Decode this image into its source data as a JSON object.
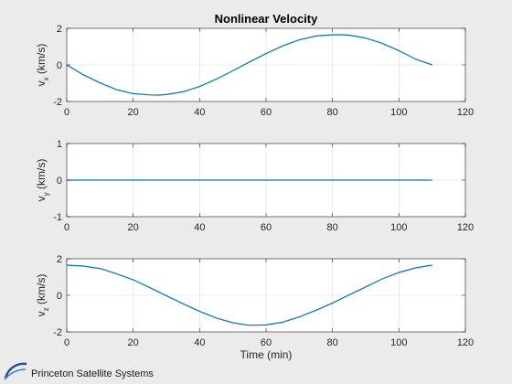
{
  "figure": {
    "background": "#ebebeb",
    "line_color": "#0072bd",
    "brand_text": "Princeton Satellite Systems",
    "brand_logo": "pss-swoosh-logo"
  },
  "chart_data": [
    {
      "type": "line",
      "title": "Nonlinear Velocity",
      "ylabel_main": "v",
      "ylabel_sub": "x",
      "ylabel_unit": " (km/s)",
      "xlabel": "",
      "xlim": [
        0,
        120
      ],
      "ylim": [
        -2,
        2
      ],
      "xticks": [
        0,
        20,
        40,
        60,
        80,
        100,
        120
      ],
      "yticks": [
        -2,
        0,
        2
      ],
      "grid": true,
      "series": [
        {
          "x": [
            0,
            5,
            10,
            15,
            20,
            25,
            27.5,
            30,
            35,
            40,
            45,
            50,
            55,
            60,
            65,
            70,
            75,
            80,
            82.5,
            85,
            90,
            95,
            100,
            105,
            110
          ],
          "y": [
            0,
            -0.54,
            -0.98,
            -1.35,
            -1.57,
            -1.64,
            -1.65,
            -1.62,
            -1.47,
            -1.18,
            -0.78,
            -0.32,
            0.16,
            0.62,
            1.04,
            1.37,
            1.58,
            1.65,
            1.65,
            1.63,
            1.47,
            1.18,
            0.78,
            0.32,
            0.0
          ]
        }
      ]
    },
    {
      "type": "line",
      "title": "",
      "ylabel_main": "v",
      "ylabel_sub": "y",
      "ylabel_unit": " (km/s)",
      "xlabel": "",
      "xlim": [
        0,
        120
      ],
      "ylim": [
        -1,
        1
      ],
      "xticks": [
        0,
        20,
        40,
        60,
        80,
        100,
        120
      ],
      "yticks": [
        -1,
        0,
        1
      ],
      "grid": true,
      "series": [
        {
          "x": [
            0,
            110
          ],
          "y": [
            0,
            0
          ]
        }
      ]
    },
    {
      "type": "line",
      "title": "",
      "ylabel_main": "v",
      "ylabel_sub": "z",
      "ylabel_unit": " (km/s)",
      "xlabel": "Time (min)",
      "xlim": [
        0,
        120
      ],
      "ylim": [
        -2,
        2
      ],
      "xticks": [
        0,
        20,
        40,
        60,
        80,
        100,
        120
      ],
      "yticks": [
        -2,
        0,
        2
      ],
      "grid": true,
      "series": [
        {
          "x": [
            0,
            5,
            10,
            15,
            20,
            25,
            30,
            35,
            40,
            45,
            50,
            55,
            60,
            65,
            70,
            75,
            80,
            85,
            90,
            95,
            100,
            105,
            110
          ],
          "y": [
            1.65,
            1.6,
            1.47,
            1.18,
            0.85,
            0.42,
            -0.02,
            -0.46,
            -0.88,
            -1.24,
            -1.5,
            -1.64,
            -1.62,
            -1.47,
            -1.18,
            -0.82,
            -0.42,
            0.02,
            0.46,
            0.9,
            1.25,
            1.5,
            1.65
          ]
        }
      ]
    }
  ]
}
